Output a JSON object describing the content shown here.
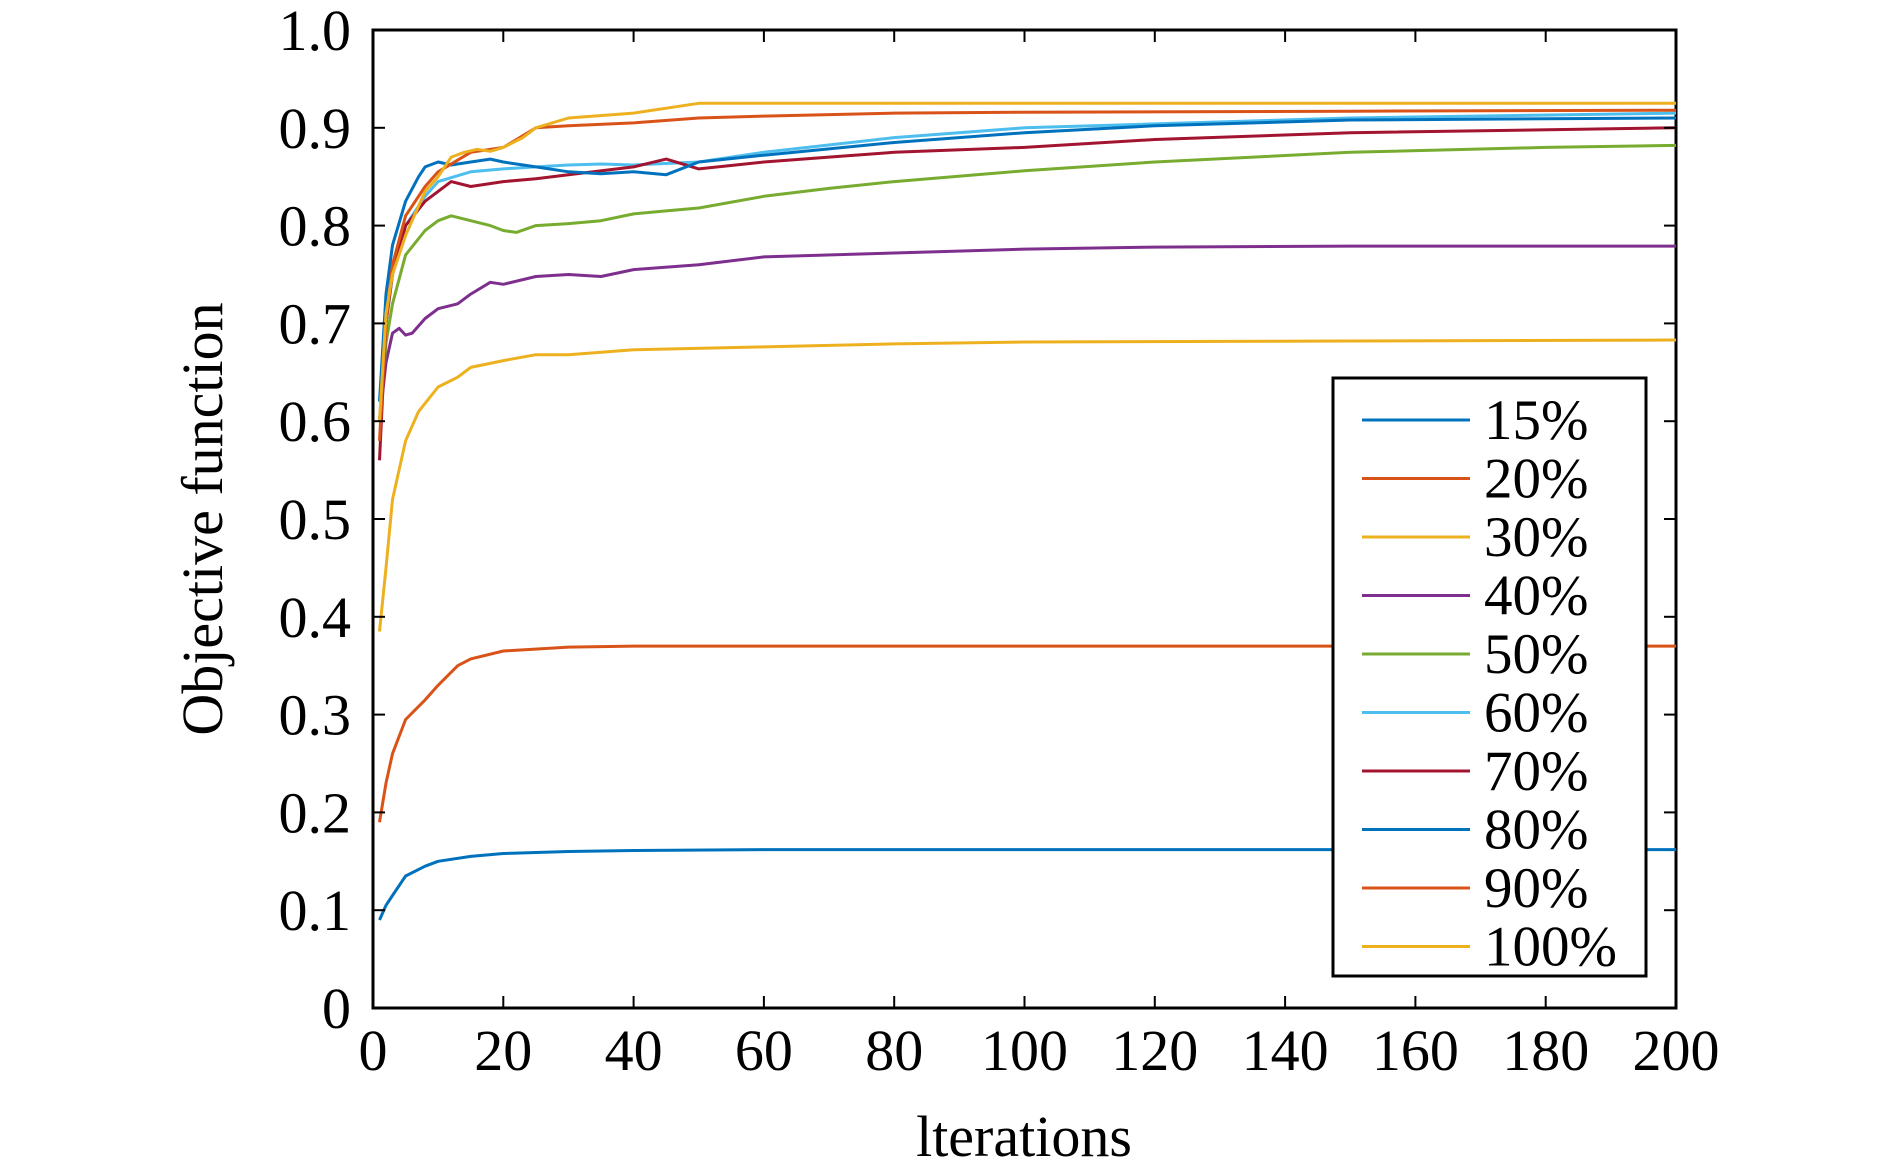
{
  "chart_data": {
    "type": "line",
    "title": "",
    "xlabel": "lterations",
    "ylabel": "Objective function",
    "xlim": [
      0,
      200
    ],
    "ylim": [
      0,
      1.0
    ],
    "xticks": [
      0,
      20,
      40,
      60,
      80,
      100,
      120,
      140,
      160,
      180,
      200
    ],
    "xtick_labels": [
      "0",
      "20",
      "40",
      "60",
      "80",
      "100",
      "120",
      "140",
      "160",
      "180",
      "200"
    ],
    "yticks": [
      0,
      0.1,
      0.2,
      0.3,
      0.4,
      0.5,
      0.6,
      0.7,
      0.8,
      0.9,
      1.0
    ],
    "ytick_labels": [
      "0",
      "0.1",
      "0.2",
      "0.3",
      "0.4",
      "0.5",
      "0.6",
      "0.7",
      "0.8",
      "0.9",
      "1.0"
    ],
    "grid": false,
    "legend_position": "bottom-right",
    "series": [
      {
        "name": "15%",
        "color": "#0072BD",
        "x": [
          1,
          2,
          3,
          5,
          8,
          10,
          15,
          20,
          30,
          40,
          60,
          100,
          150,
          200
        ],
        "y": [
          0.09,
          0.105,
          0.115,
          0.135,
          0.145,
          0.15,
          0.155,
          0.158,
          0.16,
          0.161,
          0.162,
          0.162,
          0.162,
          0.162
        ]
      },
      {
        "name": "20%",
        "color": "#D95319",
        "x": [
          1,
          2,
          3,
          5,
          8,
          10,
          13,
          15,
          20,
          30,
          40,
          60,
          100,
          150,
          200
        ],
        "y": [
          0.19,
          0.23,
          0.26,
          0.295,
          0.315,
          0.33,
          0.35,
          0.357,
          0.365,
          0.369,
          0.37,
          0.37,
          0.37,
          0.37,
          0.37
        ]
      },
      {
        "name": "30%",
        "color": "#EDB120",
        "x": [
          1,
          2,
          3,
          5,
          7,
          10,
          13,
          15,
          20,
          25,
          30,
          40,
          60,
          80,
          100,
          150,
          200
        ],
        "y": [
          0.385,
          0.45,
          0.52,
          0.58,
          0.61,
          0.635,
          0.645,
          0.655,
          0.662,
          0.668,
          0.668,
          0.673,
          0.676,
          0.679,
          0.681,
          0.682,
          0.683
        ]
      },
      {
        "name": "40%",
        "color": "#7E2F8E",
        "x": [
          1,
          2,
          3,
          4,
          5,
          6,
          8,
          10,
          13,
          15,
          18,
          20,
          25,
          30,
          35,
          40,
          50,
          60,
          80,
          100,
          120,
          150,
          200
        ],
        "y": [
          0.6,
          0.66,
          0.69,
          0.695,
          0.688,
          0.69,
          0.705,
          0.715,
          0.72,
          0.73,
          0.742,
          0.74,
          0.748,
          0.75,
          0.748,
          0.755,
          0.76,
          0.768,
          0.772,
          0.776,
          0.778,
          0.779,
          0.779
        ]
      },
      {
        "name": "50%",
        "color": "#77AC30",
        "x": [
          1,
          2,
          3,
          5,
          8,
          10,
          12,
          15,
          18,
          20,
          22,
          25,
          30,
          35,
          40,
          45,
          50,
          60,
          70,
          80,
          100,
          120,
          150,
          180,
          200
        ],
        "y": [
          0.6,
          0.68,
          0.72,
          0.77,
          0.795,
          0.805,
          0.81,
          0.805,
          0.8,
          0.795,
          0.793,
          0.8,
          0.802,
          0.805,
          0.812,
          0.815,
          0.818,
          0.83,
          0.838,
          0.845,
          0.856,
          0.865,
          0.875,
          0.88,
          0.882
        ]
      },
      {
        "name": "60%",
        "color": "#4DBEEE",
        "x": [
          1,
          2,
          3,
          5,
          8,
          10,
          15,
          20,
          25,
          30,
          35,
          40,
          50,
          60,
          80,
          100,
          150,
          200
        ],
        "y": [
          0.6,
          0.7,
          0.75,
          0.8,
          0.83,
          0.845,
          0.855,
          0.858,
          0.86,
          0.862,
          0.863,
          0.862,
          0.865,
          0.875,
          0.89,
          0.9,
          0.91,
          0.915
        ]
      },
      {
        "name": "70%",
        "color": "#A2142F",
        "x": [
          1,
          2,
          3,
          5,
          8,
          10,
          12,
          15,
          20,
          25,
          30,
          40,
          45,
          50,
          60,
          70,
          80,
          100,
          120,
          150,
          200
        ],
        "y": [
          0.56,
          0.7,
          0.75,
          0.8,
          0.825,
          0.835,
          0.845,
          0.84,
          0.845,
          0.848,
          0.852,
          0.86,
          0.868,
          0.858,
          0.865,
          0.87,
          0.875,
          0.88,
          0.888,
          0.895,
          0.9
        ]
      },
      {
        "name": "80%",
        "color": "#0072BD",
        "x": [
          1,
          2,
          3,
          5,
          7,
          8,
          10,
          12,
          15,
          18,
          20,
          25,
          30,
          35,
          40,
          45,
          50,
          60,
          80,
          100,
          120,
          150,
          200
        ],
        "y": [
          0.62,
          0.73,
          0.78,
          0.825,
          0.85,
          0.86,
          0.865,
          0.862,
          0.865,
          0.868,
          0.865,
          0.86,
          0.855,
          0.853,
          0.855,
          0.852,
          0.865,
          0.872,
          0.885,
          0.895,
          0.902,
          0.908,
          0.91
        ]
      },
      {
        "name": "90%",
        "color": "#D95319",
        "x": [
          1,
          2,
          3,
          5,
          8,
          10,
          15,
          20,
          25,
          30,
          40,
          50,
          60,
          80,
          100,
          150,
          200
        ],
        "y": [
          0.58,
          0.7,
          0.76,
          0.81,
          0.84,
          0.855,
          0.875,
          0.88,
          0.9,
          0.902,
          0.905,
          0.91,
          0.912,
          0.915,
          0.916,
          0.917,
          0.918
        ]
      },
      {
        "name": "100%",
        "color": "#EDB120",
        "x": [
          1,
          2,
          3,
          5,
          8,
          10,
          12,
          14,
          16,
          18,
          20,
          23,
          25,
          30,
          40,
          50,
          60,
          80,
          100,
          150,
          200
        ],
        "y": [
          0.6,
          0.71,
          0.75,
          0.79,
          0.835,
          0.85,
          0.87,
          0.875,
          0.878,
          0.876,
          0.88,
          0.89,
          0.9,
          0.91,
          0.915,
          0.925,
          0.925,
          0.925,
          0.925,
          0.925,
          0.925
        ]
      }
    ]
  }
}
